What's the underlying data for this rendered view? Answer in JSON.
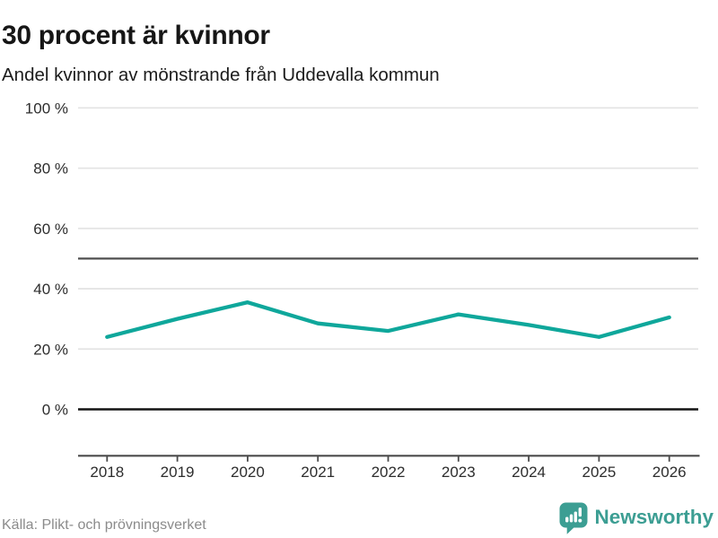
{
  "header": {
    "title": "30 procent är kvinnor",
    "subtitle": "Andel kvinnor av mönstrande från Uddevalla kommun"
  },
  "chart_data": {
    "type": "line",
    "title": "30 procent är kvinnor",
    "subtitle": "Andel kvinnor av mönstrande från Uddevalla kommun",
    "x": [
      2018,
      2019,
      2020,
      2021,
      2022,
      2023,
      2024,
      2025,
      2026
    ],
    "series": [
      {
        "name": "Andel kvinnor av mönstrande",
        "values": [
          24,
          30,
          35.5,
          28.5,
          26,
          31.5,
          28,
          24,
          30.5
        ],
        "color": "#0fa79b"
      }
    ],
    "unit": "%",
    "ylim": [
      0,
      100
    ],
    "yticks": [
      0,
      20,
      40,
      60,
      80,
      100
    ],
    "ytick_suffix": " %",
    "reference_line": 50,
    "grid": true,
    "legend": false,
    "colors": {
      "grid": "#e3e3e3",
      "reference": "#4f4f4f",
      "zero": "#141414",
      "axis": "#4a4a4a"
    }
  },
  "footer": {
    "source": "Källa: Plikt- och prövningsverket",
    "brand": {
      "name": "Newsworthy",
      "color": "#3c9e93",
      "icon": "bar-chart-speech-bubble"
    }
  }
}
